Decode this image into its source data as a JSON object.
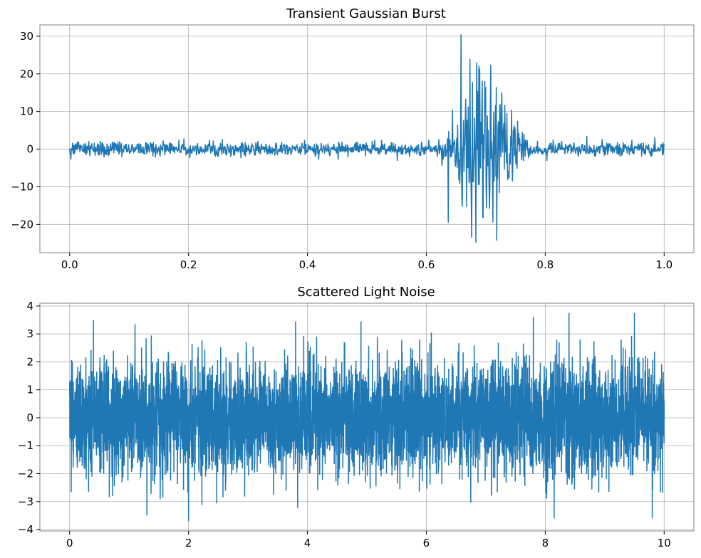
{
  "figure": {
    "line_color": "#1f77b4",
    "grid_color": "#b0b0b0",
    "spine_color": "#808080",
    "background": "#ffffff"
  },
  "chart_data": [
    {
      "type": "line",
      "title": "Transient Gaussian Burst",
      "xlabel": "",
      "ylabel": "",
      "xlim": [
        -0.05,
        1.05
      ],
      "ylim": [
        -27.5,
        33
      ],
      "xticks": [
        0.0,
        0.2,
        0.4,
        0.6,
        0.8,
        1.0
      ],
      "xtick_labels": [
        "0.0",
        "0.2",
        "0.4",
        "0.6",
        "0.8",
        "1.0"
      ],
      "yticks": [
        -20,
        -10,
        0,
        10,
        20,
        30
      ],
      "ytick_labels": [
        "−20",
        "−10",
        "0",
        "10",
        "20",
        "30"
      ],
      "grid": true,
      "series": [
        {
          "color": "#1f77b4",
          "description_of_data": "white noise of standard deviation ~1 over x in [0, 1] plus a Gaussian-windowed burst centred near x = 0.70",
          "noise_std": 1.0,
          "burst_center": 0.7,
          "burst_sigma": 0.04,
          "burst_start": 0.625,
          "burst_end": 0.775,
          "peak_max": 30.5,
          "peak_min": -24.8,
          "notable_peaks": [
            {
              "x": 0.658,
              "y": 30.5
            },
            {
              "x": 0.673,
              "y": 24.0
            },
            {
              "x": 0.685,
              "y": 23.0
            },
            {
              "x": 0.7,
              "y": 16.5
            },
            {
              "x": 0.718,
              "y": 16.5
            },
            {
              "x": 0.676,
              "y": -23.5
            },
            {
              "x": 0.683,
              "y": -24.8
            },
            {
              "x": 0.712,
              "y": -19.5
            },
            {
              "x": 0.637,
              "y": -19.5
            },
            {
              "x": 0.695,
              "y": -18.0
            }
          ]
        }
      ]
    },
    {
      "type": "line",
      "title": "Scattered Light Noise",
      "xlabel": "",
      "ylabel": "",
      "xlim": [
        -0.5,
        10.5
      ],
      "ylim": [
        -4.05,
        4.1
      ],
      "xticks": [
        0,
        2,
        4,
        6,
        8,
        10
      ],
      "xtick_labels": [
        "0",
        "2",
        "4",
        "6",
        "8",
        "10"
      ],
      "yticks": [
        -4,
        -3,
        -2,
        -1,
        0,
        1,
        2,
        3,
        4
      ],
      "ytick_labels": [
        "−4",
        "−3",
        "−2",
        "−1",
        "0",
        "1",
        "2",
        "3",
        "4"
      ],
      "grid": true,
      "series": [
        {
          "color": "#1f77b4",
          "description_of_data": "dense Gaussian noise of standard deviation ~1 over x in [0, 10]",
          "noise_std": 1.0,
          "peak_max": 3.75,
          "peak_min": -3.7,
          "notable_peaks": [
            {
              "x": 2.0,
              "y": -3.7
            },
            {
              "x": 8.4,
              "y": 3.75
            },
            {
              "x": 9.5,
              "y": 3.75
            },
            {
              "x": 7.8,
              "y": 3.6
            },
            {
              "x": 8.15,
              "y": -3.6
            },
            {
              "x": 9.8,
              "y": -3.6
            },
            {
              "x": 3.8,
              "y": 3.45
            },
            {
              "x": 4.9,
              "y": 3.45
            },
            {
              "x": 1.1,
              "y": 3.35
            },
            {
              "x": 1.3,
              "y": -3.5
            }
          ]
        }
      ]
    }
  ]
}
